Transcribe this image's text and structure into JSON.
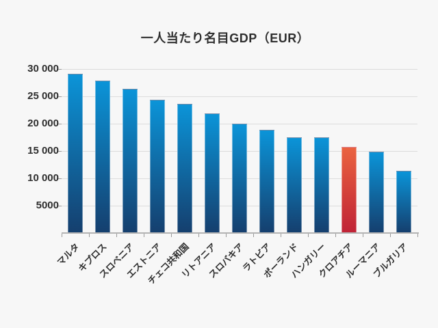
{
  "title": "一人当たり名目GDP（EUR）",
  "chart_data": {
    "type": "bar",
    "title": "一人当たり名目GDP（EUR）",
    "xlabel": "",
    "ylabel": "",
    "categories": [
      "マルタ",
      "キプロス",
      "スロベニア",
      "エストニア",
      "チェコ共和国",
      "リトアニア",
      "スロバキア",
      "ラトビア",
      "ポーランド",
      "ハンガリー",
      "クロアチア",
      "ルーマニア",
      "ブルガリア"
    ],
    "values": [
      29000,
      27700,
      26200,
      24300,
      23500,
      21800,
      19900,
      18800,
      17400,
      17400,
      15600,
      14700,
      11300
    ],
    "highlight_category": "クロアチア",
    "highlight_index": 10,
    "ylim": [
      0,
      30000
    ],
    "ytick_step": 5000,
    "ytick_labels": [
      "5000",
      "10 000",
      "15 000",
      "20 000",
      "25 000",
      "30 000"
    ],
    "grid": true,
    "legend": false,
    "colors": {
      "background": "#f7f7f7",
      "bar_top": "#0b94d8",
      "bar_bottom": "#153f6e",
      "highlight_top": "#ea6340",
      "highlight_bottom": "#c02336",
      "gridline": "#dcdcdc",
      "axis_line": "#b3b3b3",
      "tick": "#999999",
      "text": "#2e2e2e"
    }
  }
}
